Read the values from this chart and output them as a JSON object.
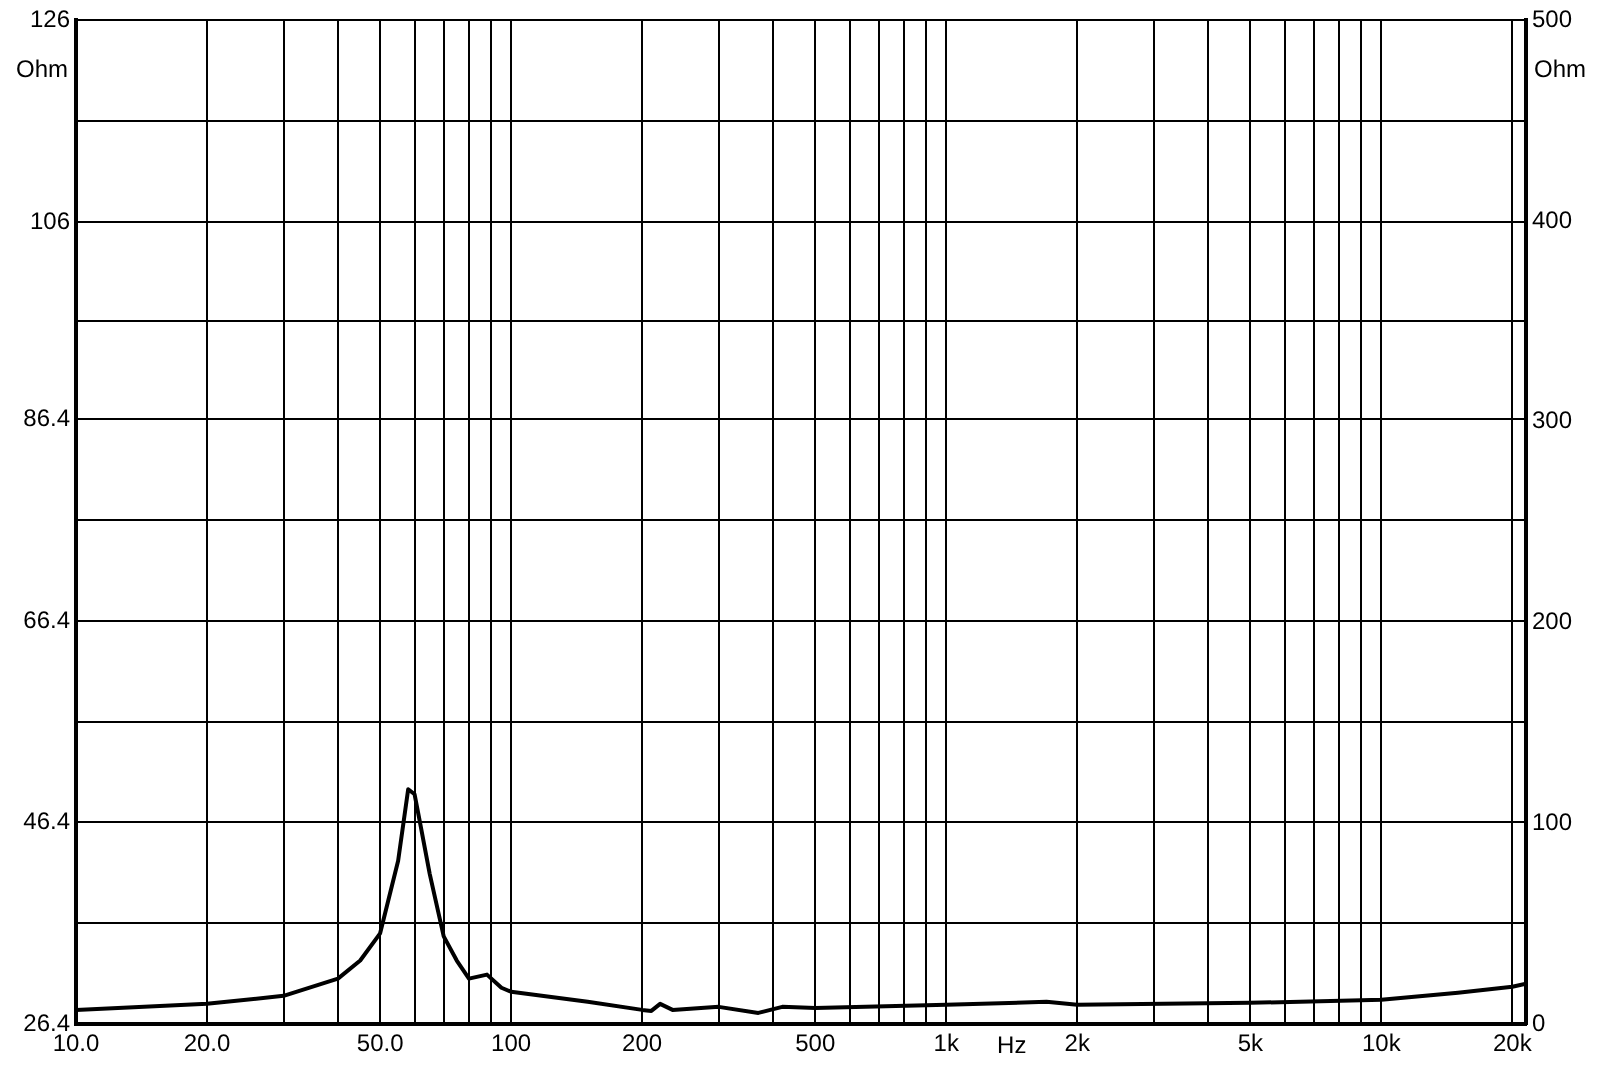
{
  "chart_data": {
    "type": "line",
    "xlabel": "Hz",
    "ylabel": "Ohm",
    "y2label": "Ohm",
    "x": [
      10,
      20,
      30,
      40,
      45,
      50,
      55,
      58,
      60,
      62,
      65,
      70,
      75,
      80,
      88,
      95,
      100,
      150,
      200,
      210,
      220,
      235,
      300,
      370,
      420,
      500,
      1000,
      1700,
      2000,
      5000,
      10000,
      15000,
      20000,
      21500
    ],
    "series": [
      {
        "color": "#000000",
        "values": [
          27.8,
          28.4,
          29.2,
          30.9,
          32.7,
          35.4,
          42.6,
          49.7,
          49.2,
          46,
          41.3,
          35.1,
          32.7,
          30.9,
          31.3,
          30,
          29.6,
          28.6,
          27.8,
          27.7,
          28.4,
          27.8,
          28.1,
          27.5,
          28.1,
          28,
          28.3,
          28.6,
          28.3,
          28.5,
          28.8,
          29.5,
          30.1,
          30.4
        ]
      }
    ],
    "log": "x",
    "xlim": [
      10,
      21500
    ],
    "xticks": [
      {
        "value": 10,
        "label": "10.0"
      },
      {
        "value": 20,
        "label": "20.0"
      },
      {
        "value": 30,
        "label": null
      },
      {
        "value": 40,
        "label": null
      },
      {
        "value": 50,
        "label": "50.0"
      },
      {
        "value": 60,
        "label": null
      },
      {
        "value": 70,
        "label": null
      },
      {
        "value": 80,
        "label": null
      },
      {
        "value": 90,
        "label": null
      },
      100,
      200,
      {
        "value": 300,
        "label": null
      },
      {
        "value": 400,
        "label": null
      },
      500,
      {
        "value": 600,
        "label": null
      },
      {
        "value": 700,
        "label": null
      },
      {
        "value": 800,
        "label": null
      },
      {
        "value": 900,
        "label": null
      },
      {
        "value": 1000,
        "label": "1k"
      },
      {
        "value": 2000,
        "label": "2k"
      },
      {
        "value": 3000,
        "label": null
      },
      {
        "value": 4000,
        "label": null
      },
      {
        "value": 5000,
        "label": "5k"
      },
      {
        "value": 6000,
        "label": null
      },
      {
        "value": 7000,
        "label": null
      },
      {
        "value": 8000,
        "label": null
      },
      {
        "value": 9000,
        "label": null
      },
      {
        "value": 10000,
        "label": "10k"
      },
      {
        "value": 20000,
        "label": "20k"
      }
    ],
    "ylim": [
      26.4,
      126
    ],
    "yticks": [
      26.4,
      {
        "value": 36.4,
        "label": null
      },
      46.4,
      {
        "value": 56.4,
        "label": null
      },
      66.4,
      {
        "value": 76.4,
        "label": null
      },
      86.4,
      {
        "value": 96.2,
        "label": null
      },
      106,
      {
        "value": 116,
        "label": null
      },
      126
    ],
    "y2lim": [
      0,
      500
    ],
    "y2ticks": [
      0,
      100,
      200,
      300,
      400,
      500
    ],
    "grid": true,
    "legend": false,
    "marker": "none",
    "line_style": "solid"
  }
}
